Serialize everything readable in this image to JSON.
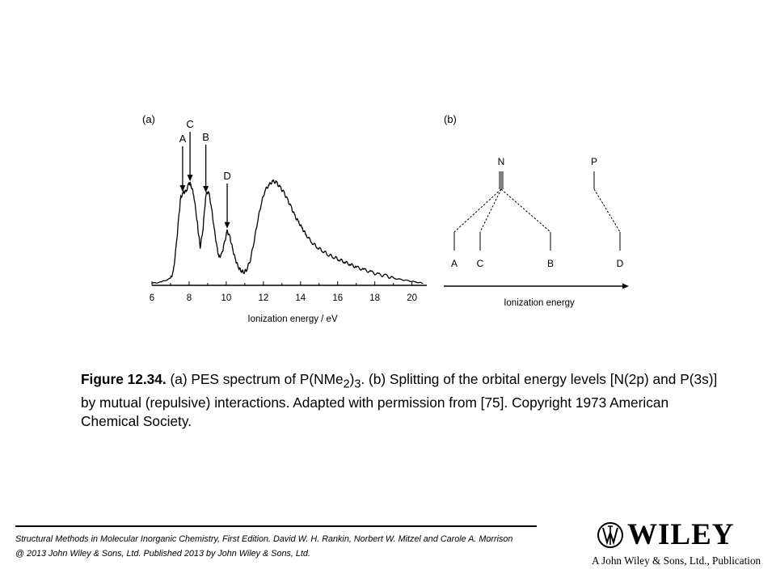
{
  "chart_data": {
    "type": "line",
    "panels": [
      {
        "id": "a",
        "label": "(a)",
        "xlabel": "Ionization energy / eV",
        "xlim": [
          6,
          20.8
        ],
        "xticks": [
          "6",
          "8",
          "10",
          "12",
          "14",
          "16",
          "18",
          "20"
        ],
        "peak_labels": [
          {
            "text": "A",
            "x": 7.65
          },
          {
            "text": "C",
            "x": 8.05
          },
          {
            "text": "B",
            "x": 8.9
          },
          {
            "text": "D",
            "x": 10.05
          }
        ],
        "spectrum": {
          "x": [
            6.0,
            6.5,
            7.0,
            7.15,
            7.3,
            7.45,
            7.55,
            7.7,
            7.85,
            8.0,
            8.1,
            8.25,
            8.4,
            8.5,
            8.6,
            8.75,
            8.9,
            9.05,
            9.2,
            9.35,
            9.5,
            9.6,
            9.75,
            9.9,
            10.05,
            10.2,
            10.35,
            10.5,
            10.65,
            10.8,
            10.95,
            11.1,
            11.3,
            11.5,
            11.7,
            11.9,
            12.1,
            12.3,
            12.5,
            12.7,
            12.9,
            13.1,
            13.3,
            13.5,
            13.7,
            13.9,
            14.1,
            14.3,
            14.6,
            14.9,
            15.2,
            15.5,
            15.8,
            16.1,
            16.4,
            16.7,
            17.0,
            17.4,
            17.8,
            18.2,
            18.6,
            19.0,
            19.4,
            19.8,
            20.2,
            20.6
          ],
          "y": [
            0.01,
            0.02,
            0.05,
            0.1,
            0.3,
            0.55,
            0.7,
            0.74,
            0.75,
            0.82,
            0.8,
            0.72,
            0.55,
            0.42,
            0.3,
            0.45,
            0.72,
            0.75,
            0.62,
            0.45,
            0.3,
            0.22,
            0.24,
            0.33,
            0.43,
            0.38,
            0.28,
            0.2,
            0.14,
            0.11,
            0.1,
            0.12,
            0.2,
            0.35,
            0.52,
            0.66,
            0.76,
            0.8,
            0.83,
            0.82,
            0.78,
            0.74,
            0.68,
            0.62,
            0.55,
            0.5,
            0.45,
            0.4,
            0.34,
            0.3,
            0.27,
            0.24,
            0.22,
            0.2,
            0.18,
            0.16,
            0.14,
            0.12,
            0.1,
            0.08,
            0.07,
            0.05,
            0.04,
            0.03,
            0.02,
            0.01
          ]
        }
      },
      {
        "id": "b",
        "label": "(b)",
        "xlabel": "Ionization energy",
        "parents": [
          "N",
          "P"
        ],
        "levels": [
          "A",
          "C",
          "B",
          "D"
        ]
      }
    ]
  },
  "caption": {
    "figure_label": "Figure 12.34.",
    "text_1": " (a) PES spectrum of P(NMe",
    "sub_1": "2",
    "text_2": ")",
    "sub_2": "3",
    "text_3": ". (b) Splitting of the orbital energy levels [N(2p) and P(3s)] by mutual (repulsive) interactions. Adapted with permission from [75]. Copyright 1973 American Chemical Society."
  },
  "footer": {
    "line1": "Structural Methods in Molecular Inorganic Chemistry, First Edition. David W. H. Rankin, Norbert W. Mitzel and Carole A. Morrison",
    "line2": "@ 2013 John Wiley & Sons, Ltd. Published 2013 by John Wiley & Sons, Ltd."
  },
  "logo": {
    "word": "WILEY",
    "tagline": "A John Wiley & Sons, Ltd., Publication"
  }
}
